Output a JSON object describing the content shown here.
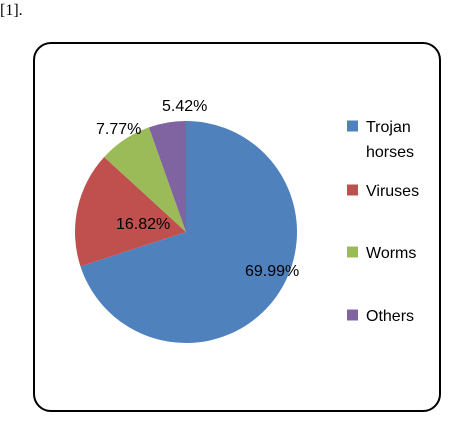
{
  "header": {
    "reference": "[1]."
  },
  "colors": {
    "trojan": "#4f81bd",
    "viruses": "#c0504d",
    "worms": "#9bbb59",
    "others": "#8064a2"
  },
  "chart_data": {
    "type": "pie",
    "title": "",
    "start_angle_deg": 0,
    "direction": "clockwise",
    "legend_position": "right",
    "slices": [
      {
        "label_lines": [
          "Trojan",
          "horses"
        ],
        "value": 69.99,
        "value_label": "69.99%",
        "color": "#4f81bd"
      },
      {
        "label_lines": [
          "Viruses"
        ],
        "value": 16.82,
        "value_label": "16.82%",
        "color": "#c0504d"
      },
      {
        "label_lines": [
          "Worms"
        ],
        "value": 7.77,
        "value_label": "7.77%",
        "color": "#9bbb59"
      },
      {
        "label_lines": [
          "Others"
        ],
        "value": 5.42,
        "value_label": "5.42%",
        "color": "#8064a2"
      }
    ]
  }
}
